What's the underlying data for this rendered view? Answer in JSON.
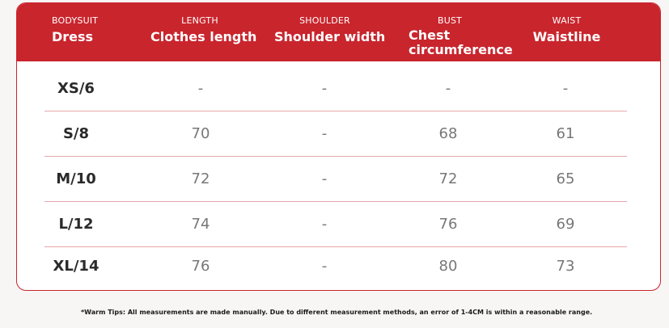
{
  "header": {
    "columns": [
      {
        "caption": "BODYSUIT",
        "label": "Dress"
      },
      {
        "caption": "LENGTH",
        "label": "Clothes length"
      },
      {
        "caption": "SHOULDER",
        "label": "Shoulder width"
      },
      {
        "caption": "BUST",
        "label": "Chest circumference"
      },
      {
        "caption": "WAIST",
        "label": "Waistline"
      }
    ]
  },
  "rows": [
    {
      "size": "XS/6",
      "length": "-",
      "shoulder": "-",
      "bust": "-",
      "waist": "-"
    },
    {
      "size": "S/8",
      "length": "70",
      "shoulder": "-",
      "bust": "68",
      "waist": "61"
    },
    {
      "size": "M/10",
      "length": "72",
      "shoulder": "-",
      "bust": "72",
      "waist": "65"
    },
    {
      "size": "L/12",
      "length": "74",
      "shoulder": "-",
      "bust": "76",
      "waist": "69"
    },
    {
      "size": "XL/14",
      "length": "76",
      "shoulder": "-",
      "bust": "80",
      "waist": "73"
    }
  ],
  "footer": {
    "tip": "*Warm Tips: All measurements are made manually. Due to different measurement methods, an error of 1-4CM is within a reasonable range."
  },
  "colors": {
    "header_bg": "#c9252d",
    "divider": "#e7a6a9"
  }
}
